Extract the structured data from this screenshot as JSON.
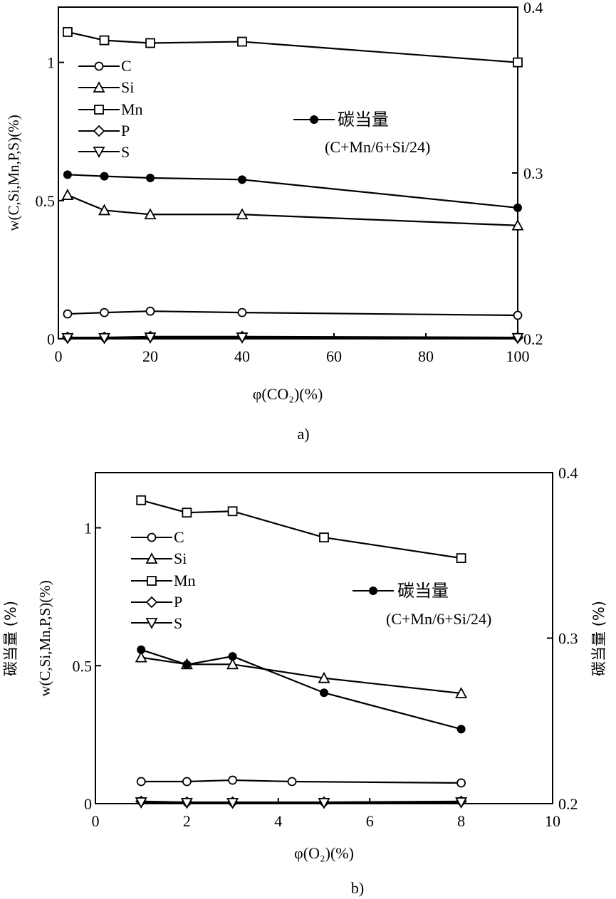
{
  "chart_data": [
    {
      "type": "line",
      "panel_label": "a)",
      "xlabel": "φ(CO₂)(%)",
      "ylabel": "w(C,Si,Mn,P,S)(%)",
      "ylabel_right": "",
      "xlim": [
        0,
        100
      ],
      "ylim": [
        0,
        1.2
      ],
      "y2lim": [
        0.2,
        0.4
      ],
      "x_ticks": [
        0,
        20,
        40,
        60,
        80,
        100
      ],
      "y_ticks": [
        0,
        0.5,
        1
      ],
      "y_ticks_labels": [
        "0",
        "0.5",
        "1"
      ],
      "y2_ticks": [
        0.2,
        0.3,
        0.4
      ],
      "y2_ticks_labels": [
        "0.2",
        "0.3",
        "0.4"
      ],
      "legend": [
        "C",
        "Si",
        "Mn",
        "P",
        "S"
      ],
      "ce_label": "碳当量",
      "ce_formula": "(C+Mn/6+Si/24)",
      "series": [
        {
          "name": "Mn",
          "marker": "square",
          "x": [
            2,
            10,
            20,
            40,
            100
          ],
          "values": [
            1.11,
            1.08,
            1.07,
            1.075,
            1.0
          ]
        },
        {
          "name": "Si",
          "marker": "triangle",
          "x": [
            2,
            10,
            20,
            40,
            100
          ],
          "values": [
            0.52,
            0.465,
            0.45,
            0.45,
            0.41
          ]
        },
        {
          "name": "C",
          "marker": "circle",
          "x": [
            2,
            10,
            20,
            40,
            100
          ],
          "values": [
            0.09,
            0.095,
            0.1,
            0.095,
            0.085
          ]
        },
        {
          "name": "P",
          "marker": "diamond",
          "x": [
            2,
            10,
            20,
            40,
            100
          ],
          "values": [
            0.005,
            0.005,
            0.008,
            0.008,
            0.005
          ]
        },
        {
          "name": "S",
          "marker": "triangle-down",
          "x": [
            2,
            10,
            20,
            40,
            100
          ],
          "values": [
            0.003,
            0.003,
            0.005,
            0.005,
            0.003
          ]
        },
        {
          "name": "碳当量",
          "marker": "filled-circle",
          "axis": "right",
          "x": [
            2,
            10,
            20,
            40,
            100
          ],
          "values": [
            0.299,
            0.298,
            0.297,
            0.296,
            0.279
          ]
        }
      ]
    },
    {
      "type": "line",
      "panel_label": "b)",
      "xlabel": "φ(O₂)(%)",
      "ylabel": "w(C,Si,Mn,P,S)(%)",
      "ylabel_extra": "碳当量 (%)",
      "ylabel_right": "碳当量 (%)",
      "xlim": [
        0,
        10
      ],
      "ylim": [
        0,
        1.2
      ],
      "y2lim": [
        0.2,
        0.4
      ],
      "x_ticks": [
        0,
        2,
        4,
        6,
        8,
        10
      ],
      "y_ticks": [
        0,
        0.5,
        1
      ],
      "y_ticks_labels": [
        "0",
        "0.5",
        "1"
      ],
      "y2_ticks": [
        0.2,
        0.3,
        0.4
      ],
      "y2_ticks_labels": [
        "0.2",
        "0.3",
        "0.4"
      ],
      "legend": [
        "C",
        "Si",
        "Mn",
        "P",
        "S"
      ],
      "ce_label": "碳当量",
      "ce_formula": "(C+Mn/6+Si/24)",
      "series": [
        {
          "name": "Mn",
          "marker": "square",
          "x": [
            1,
            2,
            3,
            5,
            8
          ],
          "values": [
            1.1,
            1.055,
            1.06,
            0.965,
            0.89
          ]
        },
        {
          "name": "Si",
          "marker": "triangle",
          "x": [
            1,
            2,
            3,
            5,
            8
          ],
          "values": [
            0.53,
            0.505,
            0.505,
            0.455,
            0.4
          ]
        },
        {
          "name": "C",
          "marker": "circle",
          "x": [
            1,
            2,
            3,
            4.3,
            8
          ],
          "values": [
            0.08,
            0.08,
            0.085,
            0.08,
            0.075
          ]
        },
        {
          "name": "P",
          "marker": "diamond",
          "x": [
            1,
            2,
            3,
            5,
            8
          ],
          "values": [
            0.008,
            0.005,
            0.005,
            0.005,
            0.008
          ]
        },
        {
          "name": "S",
          "marker": "triangle-down",
          "x": [
            1,
            2,
            3,
            5,
            8
          ],
          "values": [
            0.005,
            0.003,
            0.003,
            0.003,
            0.005
          ]
        },
        {
          "name": "碳当量",
          "marker": "filled-circle",
          "axis": "right",
          "x": [
            1,
            2,
            3,
            5,
            8
          ],
          "values": [
            0.293,
            0.284,
            0.289,
            0.267,
            0.245
          ]
        }
      ]
    }
  ]
}
